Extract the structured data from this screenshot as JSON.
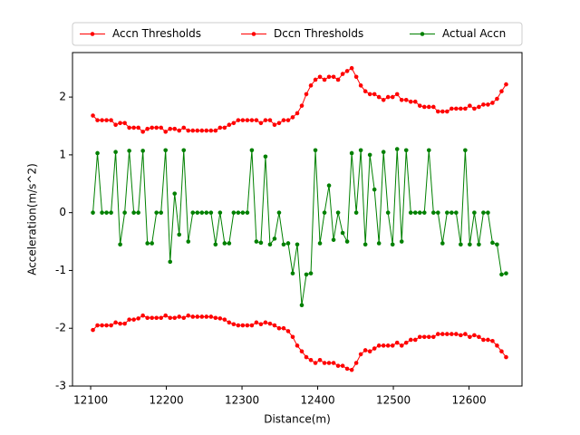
{
  "chart_data": {
    "type": "line",
    "x_label": "Distance(m)",
    "y_label": "Acceleration(m/s^2)",
    "x": [
      12103,
      12109,
      12115,
      12121,
      12127,
      12133,
      12139,
      12145,
      12151,
      12157,
      12163,
      12169,
      12175,
      12181,
      12187,
      12193,
      12199,
      12205,
      12211,
      12217,
      12223,
      12229,
      12235,
      12241,
      12247,
      12253,
      12259,
      12265,
      12271,
      12277,
      12283,
      12289,
      12295,
      12301,
      12307,
      12313,
      12319,
      12325,
      12331,
      12337,
      12343,
      12349,
      12355,
      12361,
      12367,
      12373,
      12379,
      12385,
      12391,
      12397,
      12403,
      12409,
      12415,
      12421,
      12427,
      12433,
      12439,
      12445,
      12451,
      12457,
      12463,
      12469,
      12475,
      12481,
      12487,
      12493,
      12499,
      12505,
      12511,
      12517,
      12523,
      12529,
      12535,
      12541,
      12547,
      12553,
      12559,
      12565,
      12571,
      12577,
      12583,
      12589,
      12595,
      12601,
      12607,
      12613,
      12619,
      12625,
      12631,
      12637,
      12643,
      12649
    ],
    "series": [
      {
        "name": "Accn Thresholds",
        "color": "#ff0000",
        "values": [
          1.68,
          1.6,
          1.6,
          1.6,
          1.6,
          1.52,
          1.55,
          1.55,
          1.47,
          1.47,
          1.47,
          1.4,
          1.45,
          1.47,
          1.47,
          1.47,
          1.4,
          1.45,
          1.45,
          1.42,
          1.47,
          1.42,
          1.42,
          1.42,
          1.42,
          1.42,
          1.42,
          1.42,
          1.47,
          1.47,
          1.52,
          1.55,
          1.6,
          1.6,
          1.6,
          1.6,
          1.6,
          1.55,
          1.6,
          1.6,
          1.52,
          1.55,
          1.6,
          1.6,
          1.65,
          1.72,
          1.85,
          2.05,
          2.2,
          2.3,
          2.35,
          2.3,
          2.35,
          2.35,
          2.3,
          2.4,
          2.45,
          2.5,
          2.35,
          2.2,
          2.1,
          2.05,
          2.05,
          2.0,
          1.95,
          2.0,
          2.0,
          2.05,
          1.95,
          1.95,
          1.92,
          1.92,
          1.85,
          1.83,
          1.83,
          1.83,
          1.75,
          1.75,
          1.75,
          1.8,
          1.8,
          1.8,
          1.8,
          1.85,
          1.8,
          1.83,
          1.87,
          1.87,
          1.9,
          1.97,
          2.1,
          2.22
        ]
      },
      {
        "name": "Dccn Thresholds",
        "color": "#ff0000",
        "values": [
          -2.03,
          -1.95,
          -1.95,
          -1.95,
          -1.95,
          -1.9,
          -1.92,
          -1.92,
          -1.85,
          -1.85,
          -1.83,
          -1.78,
          -1.82,
          -1.82,
          -1.82,
          -1.82,
          -1.78,
          -1.82,
          -1.82,
          -1.8,
          -1.82,
          -1.78,
          -1.8,
          -1.8,
          -1.8,
          -1.8,
          -1.8,
          -1.82,
          -1.83,
          -1.85,
          -1.9,
          -1.93,
          -1.95,
          -1.95,
          -1.95,
          -1.95,
          -1.9,
          -1.93,
          -1.9,
          -1.92,
          -1.95,
          -2.0,
          -2.0,
          -2.05,
          -2.15,
          -2.3,
          -2.4,
          -2.5,
          -2.55,
          -2.6,
          -2.55,
          -2.6,
          -2.6,
          -2.6,
          -2.65,
          -2.65,
          -2.7,
          -2.72,
          -2.6,
          -2.45,
          -2.38,
          -2.4,
          -2.35,
          -2.3,
          -2.3,
          -2.3,
          -2.3,
          -2.25,
          -2.3,
          -2.25,
          -2.2,
          -2.2,
          -2.15,
          -2.15,
          -2.15,
          -2.15,
          -2.1,
          -2.1,
          -2.1,
          -2.1,
          -2.1,
          -2.12,
          -2.1,
          -2.15,
          -2.12,
          -2.15,
          -2.2,
          -2.2,
          -2.22,
          -2.3,
          -2.4,
          -2.5
        ]
      },
      {
        "name": "Actual Accn",
        "color": "#008000",
        "values": [
          0,
          1.03,
          0,
          0,
          0,
          1.05,
          -0.55,
          0,
          1.07,
          0,
          0,
          1.07,
          -0.53,
          -0.53,
          0,
          0,
          1.08,
          -0.85,
          0.33,
          -0.38,
          1.08,
          -0.5,
          0,
          0,
          0,
          0,
          0,
          -0.55,
          0,
          -0.53,
          -0.53,
          0,
          0,
          0,
          0,
          1.08,
          -0.5,
          -0.52,
          0.97,
          -0.55,
          -0.45,
          0,
          -0.55,
          -0.53,
          -1.05,
          -0.55,
          -1.6,
          -1.07,
          -1.05,
          1.08,
          -0.53,
          0,
          0.47,
          -0.47,
          0,
          -0.35,
          -0.5,
          1.03,
          0,
          1.08,
          -0.55,
          1.0,
          0.4,
          -0.53,
          1.05,
          0,
          -0.55,
          1.1,
          -0.5,
          1.08,
          0,
          0,
          0,
          0,
          1.08,
          0,
          0,
          -0.53,
          0,
          0,
          0,
          -0.55,
          1.08,
          -0.55,
          0,
          -0.55,
          0,
          0,
          -0.52,
          -0.55,
          -1.07,
          -1.05
        ]
      }
    ],
    "xlim": [
      12076,
      12670
    ],
    "ylim": [
      -3,
      2.77
    ],
    "xticks": [
      12100,
      12200,
      12300,
      12400,
      12500,
      12600
    ],
    "yticks": [
      -3,
      -2,
      -1,
      0,
      1,
      2
    ],
    "legend": "top"
  }
}
